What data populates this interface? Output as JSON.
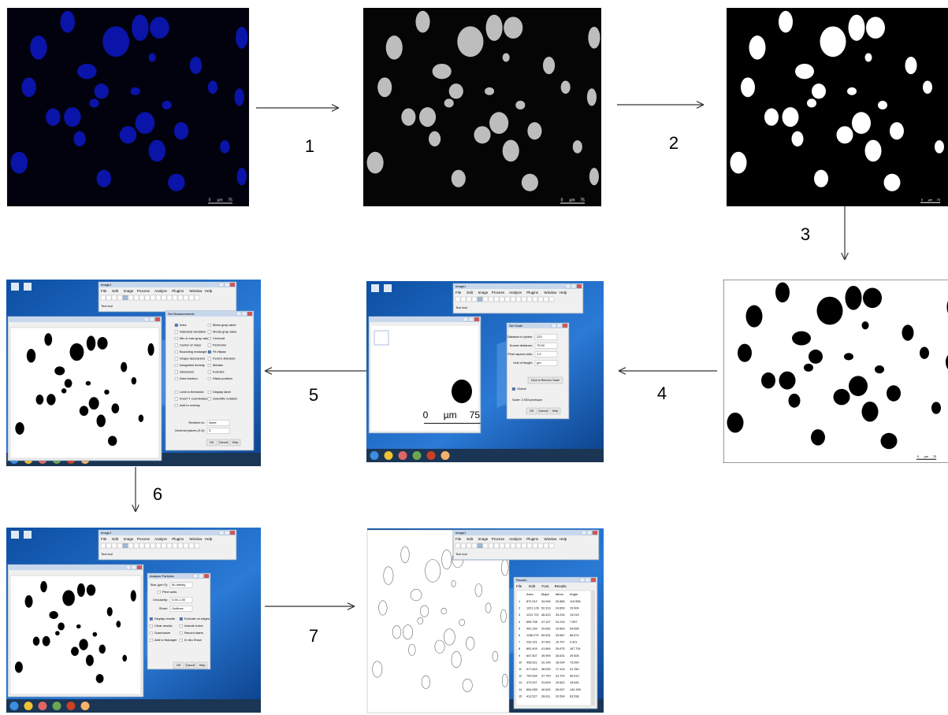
{
  "steps": [
    "1",
    "2",
    "3",
    "4",
    "5",
    "6",
    "7"
  ],
  "scale_bar": {
    "min": "0",
    "unit": "µm",
    "max": "75"
  },
  "imagej": {
    "title": "ImageJ",
    "menu": [
      "File",
      "Edit",
      "Image",
      "Process",
      "Analyze",
      "Plugins",
      "Window",
      "Help"
    ],
    "status": "Text tool"
  },
  "set_scale": {
    "title": "Set Scale",
    "fields": [
      [
        "Distance in pixels:",
        "220"
      ],
      [
        "Known distance:",
        "75.00"
      ],
      [
        "Pixel aspect ratio:",
        "1.0"
      ],
      [
        "Unit of length:",
        "µm"
      ]
    ],
    "remove": "Click to Remove Scale",
    "global": "Global",
    "scale": "Scale: 2.933 pixels/µm",
    "buttons": [
      "OK",
      "Cancel",
      "Help"
    ]
  },
  "set_measurements": {
    "title": "Set Measurements",
    "options": [
      "Area",
      "Mean gray value",
      "Standard deviation",
      "Modal gray value",
      "Min & max gray value",
      "Centroid",
      "Center of mass",
      "Perimeter",
      "Bounding rectangle",
      "Fit ellipse",
      "Shape descriptors",
      "Feret's diameter",
      "Integrated density",
      "Median",
      "Skewness",
      "Kurtosis",
      "Area fraction",
      "Stack position"
    ],
    "options2": [
      "Limit to threshold",
      "Display label",
      "Invert Y coordinates",
      "Scientific notation",
      "Add to overlay"
    ],
    "redirect": [
      "Redirect to:",
      "None"
    ],
    "decimal": [
      "Decimal places (0-9):",
      "3"
    ],
    "buttons": [
      "OK",
      "Cancel",
      "Help"
    ]
  },
  "analyze_particles": {
    "title": "Analyze Particles",
    "size": [
      "Size (µm^2):",
      "50-Infinity"
    ],
    "pixel_units": "Pixel units",
    "circularity": [
      "Circularity:",
      "0.00-1.00"
    ],
    "show": [
      "Show:",
      "Outlines"
    ],
    "options": [
      "Display results",
      "Exclude on edges",
      "Clear results",
      "Include holes",
      "Summarize",
      "Record starts",
      "Add to Manager",
      "In situ Show"
    ],
    "buttons": [
      "OK",
      "Cancel",
      "Help"
    ]
  },
  "results": {
    "title": "Results",
    "menu": [
      "File",
      "Edit",
      "Font",
      "Results"
    ],
    "columns": [
      "Area",
      "Major",
      "Minor",
      "Angle"
    ],
    "rows": [
      [
        "1",
        "870.312",
        "34.946",
        "20.886",
        "113.958"
      ],
      [
        "2",
        "1021.129",
        "52.313",
        "24.853",
        "15.904"
      ],
      [
        "3",
        "1211.702",
        "46.423",
        "33.234",
        "13.019"
      ],
      [
        "4",
        "696.708",
        "47.147",
        "24.216",
        "7.597"
      ],
      [
        "5",
        "402.164",
        "29.662",
        "19.863",
        "94.695"
      ],
      [
        "6",
        "1156.079",
        "59.531",
        "33.687",
        "85.674"
      ],
      [
        "7",
        "232.221",
        "37.462",
        "10.767",
        "4.321"
      ],
      [
        "8",
        "892.409",
        "41.664",
        "26.675",
        "167.751"
      ],
      [
        "9",
        "647.507",
        "39.999",
        "26.631",
        "29.506"
      ],
      [
        "10",
        "406.521",
        "29.146",
        "16.094",
        "73.990"
      ],
      [
        "11",
        "517.643",
        "38.535",
        "17.104",
        "41.780"
      ],
      [
        "12",
        "700.634",
        "37.749",
        "23.720",
        "96.519"
      ],
      [
        "13",
        "473.207",
        "31.609",
        "19.842",
        "15.634"
      ],
      [
        "14",
        "854.055",
        "40.620",
        "26.057",
        "140.159"
      ],
      [
        "15",
        "412.527",
        "28.611",
        "20.599",
        "63.538"
      ]
    ]
  }
}
